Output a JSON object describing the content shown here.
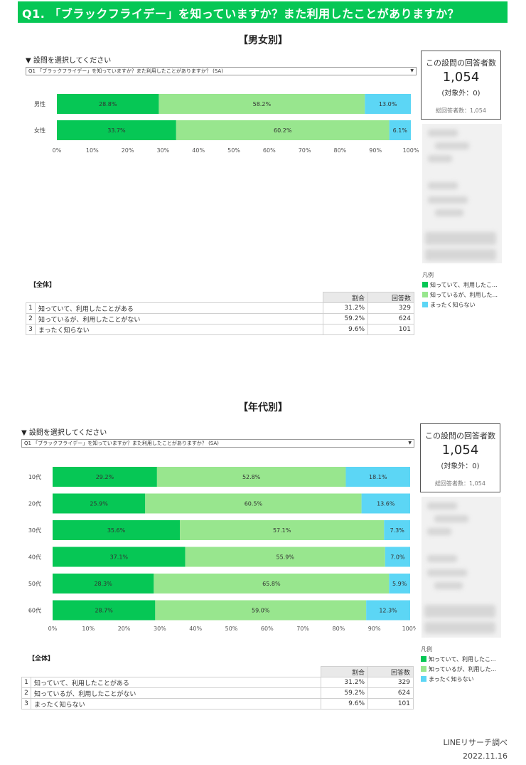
{
  "header": {
    "title": "Q1. 「ブラックフライデー」を知っていますか？また利用したことがありますか？"
  },
  "colors": {
    "known_used": "#06c755",
    "known_not_used": "#98e68e",
    "not_known": "#5cd6f5",
    "header": "#06c755"
  },
  "sections": [
    {
      "title": "【男女別】",
      "select_label": "▼ 設問を選択してください",
      "select_value": "Q1 「ブラックフライデー」を知っていますか？また利用したことがありますか？ (SA)",
      "card": {
        "title": "この設問の回答者数",
        "value": "1,054",
        "excluded": "(対象外：0)",
        "total": "総回答者数：1,054"
      },
      "legend": {
        "title": "凡例",
        "items": [
          "知っていて、利用したこ...",
          "知っているが、利用した...",
          "まったく知らない"
        ]
      },
      "summary": {
        "label": "【全体】",
        "headers": [
          "割合",
          "回答数"
        ],
        "rows": [
          {
            "idx": "1",
            "label": "知っていて、利用したことがある",
            "pct": "31.2%",
            "n": "329"
          },
          {
            "idx": "2",
            "label": "知っているが、利用したことがない",
            "pct": "59.2%",
            "n": "624"
          },
          {
            "idx": "3",
            "label": "まったく知らない",
            "pct": "9.6%",
            "n": "101"
          }
        ]
      }
    },
    {
      "title": "【年代別】",
      "select_label": "▼ 設問を選択してください",
      "select_value": "Q1 「ブラックフライデー」を知っていますか？また利用したことがありますか？ (SA)",
      "card": {
        "title": "この設問の回答者数",
        "value": "1,054",
        "excluded": "(対象外：0)",
        "total": "総回答者数：1,054"
      },
      "legend": {
        "title": "凡例",
        "items": [
          "知っていて、利用したこ...",
          "知っているが、利用した...",
          "まったく知らない"
        ]
      },
      "summary": {
        "label": "【全体】",
        "headers": [
          "割合",
          "回答数"
        ],
        "rows": [
          {
            "idx": "1",
            "label": "知っていて、利用したことがある",
            "pct": "31.2%",
            "n": "329"
          },
          {
            "idx": "2",
            "label": "知っているが、利用したことがない",
            "pct": "59.2%",
            "n": "624"
          },
          {
            "idx": "3",
            "label": "まったく知らない",
            "pct": "9.6%",
            "n": "101"
          }
        ]
      }
    }
  ],
  "chart_data": [
    {
      "type": "bar",
      "stacked": true,
      "orientation": "horizontal",
      "categories": [
        "男性",
        "女性"
      ],
      "series": [
        {
          "name": "知っていて、利用したこ...",
          "values": [
            28.8,
            33.7
          ]
        },
        {
          "name": "知っているが、利用した...",
          "values": [
            58.2,
            60.2
          ]
        },
        {
          "name": "まったく知らない",
          "values": [
            13.0,
            6.1
          ]
        }
      ],
      "xlim": [
        0,
        100
      ],
      "xticks": [
        "0%",
        "10%",
        "20%",
        "30%",
        "40%",
        "50%",
        "60%",
        "70%",
        "80%",
        "90%",
        "100%"
      ]
    },
    {
      "type": "bar",
      "stacked": true,
      "orientation": "horizontal",
      "categories": [
        "10代",
        "20代",
        "30代",
        "40代",
        "50代",
        "60代"
      ],
      "series": [
        {
          "name": "知っていて、利用したこ...",
          "values": [
            29.2,
            25.9,
            35.6,
            37.1,
            28.3,
            28.7
          ]
        },
        {
          "name": "知っているが、利用した...",
          "values": [
            52.8,
            60.5,
            57.1,
            55.9,
            65.8,
            59.0
          ]
        },
        {
          "name": "まったく知らない",
          "values": [
            18.1,
            13.6,
            7.3,
            7.0,
            5.9,
            12.3
          ]
        }
      ],
      "xlim": [
        0,
        100
      ],
      "xticks": [
        "0%",
        "10%",
        "20%",
        "30%",
        "40%",
        "50%",
        "60%",
        "70%",
        "80%",
        "90%",
        "100%"
      ]
    }
  ],
  "footer": {
    "source": "LINEリサーチ調べ",
    "date": "2022.11.16"
  }
}
